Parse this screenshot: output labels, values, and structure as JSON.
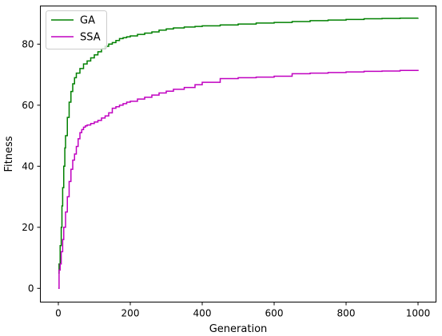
{
  "chart_data": {
    "type": "line",
    "title": "",
    "xlabel": "Generation",
    "ylabel": "Fitness",
    "xlim": [
      -50,
      1050
    ],
    "ylim": [
      -4.5,
      92.5
    ],
    "xticks": [
      "0",
      "200",
      "400",
      "600",
      "800",
      "1000"
    ],
    "xtick_values": [
      0,
      200,
      400,
      600,
      800,
      1000
    ],
    "yticks": [
      "0",
      "20",
      "40",
      "60",
      "80"
    ],
    "ytick_values": [
      0,
      20,
      40,
      60,
      80
    ],
    "grid": false,
    "legend": "top-left",
    "series": [
      {
        "name": "GA",
        "color": "#008000",
        "x": [
          0,
          2,
          5,
          8,
          10,
          12,
          15,
          18,
          20,
          25,
          30,
          35,
          40,
          45,
          50,
          60,
          70,
          80,
          90,
          100,
          110,
          120,
          130,
          140,
          150,
          160,
          170,
          180,
          190,
          200,
          220,
          240,
          260,
          280,
          300,
          320,
          350,
          380,
          400,
          450,
          500,
          550,
          600,
          650,
          700,
          750,
          800,
          850,
          900,
          950,
          1000
        ],
        "y": [
          5,
          8,
          14,
          20,
          27,
          33,
          40,
          46,
          50,
          56,
          61,
          64.5,
          67,
          69,
          70.5,
          72,
          73.5,
          74.5,
          75.5,
          76.5,
          77.5,
          78.5,
          79.3,
          80,
          80.5,
          81.2,
          81.8,
          82.1,
          82.4,
          82.7,
          83.2,
          83.6,
          84,
          84.6,
          85,
          85.3,
          85.6,
          85.8,
          86,
          86.3,
          86.6,
          86.9,
          87.1,
          87.4,
          87.7,
          87.9,
          88.1,
          88.3,
          88.4,
          88.5,
          88.6
        ]
      },
      {
        "name": "SSA",
        "color": "#c000c0",
        "x": [
          0,
          2,
          5,
          8,
          12,
          15,
          20,
          25,
          30,
          35,
          40,
          45,
          50,
          55,
          60,
          65,
          70,
          75,
          80,
          90,
          100,
          110,
          120,
          130,
          140,
          150,
          160,
          170,
          180,
          190,
          200,
          220,
          240,
          260,
          280,
          300,
          320,
          350,
          380,
          400,
          450,
          500,
          550,
          600,
          650,
          700,
          750,
          800,
          850,
          900,
          950,
          1000
        ],
        "y": [
          0,
          6,
          8,
          12,
          16,
          20,
          25,
          30,
          35,
          39,
          42,
          44,
          46.5,
          49,
          51,
          52,
          52.8,
          53.2,
          53.5,
          54,
          54.5,
          55,
          55.8,
          56.5,
          57.5,
          59,
          59.5,
          60,
          60.5,
          61,
          61.3,
          62,
          62.6,
          63.3,
          64,
          64.6,
          65.2,
          65.8,
          66.7,
          67.5,
          68.7,
          69,
          69.2,
          69.5,
          70.3,
          70.5,
          70.7,
          70.9,
          71.1,
          71.2,
          71.4,
          71.6
        ]
      }
    ]
  }
}
